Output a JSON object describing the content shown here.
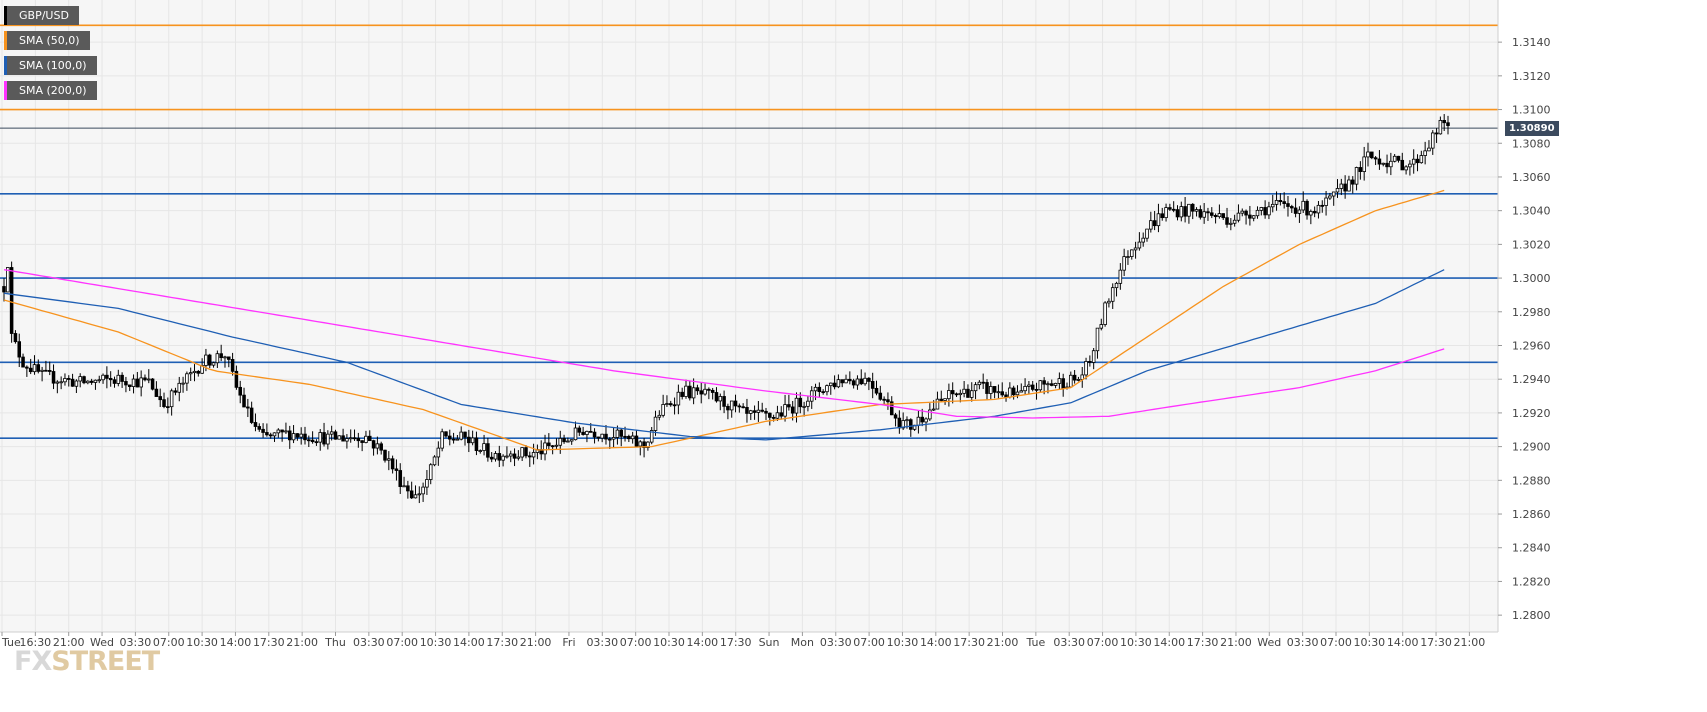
{
  "legend": [
    {
      "label": "GBP/USD",
      "color": "#000000"
    },
    {
      "label": "SMA (50,0)",
      "color": "#f7931e"
    },
    {
      "label": "SMA (100,0)",
      "color": "#1f5fb4"
    },
    {
      "label": "SMA (200,0)",
      "color": "#ff33ff"
    }
  ],
  "current_price": "1.30890",
  "logo": {
    "part1": "FX",
    "part2": "STREET"
  },
  "chart_data": {
    "type": "candlestick",
    "symbol": "GBP/USD",
    "ylim": [
      1.279,
      1.3165
    ],
    "y_ticks": [
      "1.3140",
      "1.3120",
      "1.3100",
      "1.3080",
      "1.3060",
      "1.3040",
      "1.3020",
      "1.3000",
      "1.2980",
      "1.2960",
      "1.2940",
      "1.2920",
      "1.2900",
      "1.2880",
      "1.2860",
      "1.2840",
      "1.2820",
      "1.2800"
    ],
    "x_ticks": [
      "Tue",
      "16:30",
      "21:00",
      "Wed",
      "03:30",
      "07:00",
      "10:30",
      "14:00",
      "17:30",
      "21:00",
      "Thu",
      "03:30",
      "07:00",
      "10:30",
      "14:00",
      "17:30",
      "21:00",
      "Fri",
      "03:30",
      "07:00",
      "10:30",
      "14:00",
      "17:30",
      "Sun",
      "Mon",
      "03:30",
      "07:00",
      "10:30",
      "14:00",
      "17:30",
      "21:00",
      "Tue",
      "03:30",
      "07:00",
      "10:30",
      "14:00",
      "17:30",
      "21:00",
      "Wed",
      "03:30",
      "07:00",
      "10:30",
      "14:00",
      "17:30",
      "21:00"
    ],
    "horizontal_levels": [
      {
        "value": 1.315,
        "color": "#f7931e"
      },
      {
        "value": 1.31,
        "color": "#f7931e"
      },
      {
        "value": 1.3089,
        "color": "#3b4a5e"
      },
      {
        "value": 1.305,
        "color": "#1f5fb4"
      },
      {
        "value": 1.3,
        "color": "#1f5fb4"
      },
      {
        "value": 1.295,
        "color": "#1f5fb4"
      },
      {
        "value": 1.2905,
        "color": "#1f5fb4"
      }
    ],
    "price_path": [
      [
        0,
        1.2995
      ],
      [
        1,
        1.301
      ],
      [
        2,
        1.2965
      ],
      [
        5,
        1.295
      ],
      [
        10,
        1.2942
      ],
      [
        20,
        1.2938
      ],
      [
        30,
        1.294
      ],
      [
        38,
        1.2938
      ],
      [
        42,
        1.2925
      ],
      [
        46,
        1.2935
      ],
      [
        52,
        1.295
      ],
      [
        58,
        1.2955
      ],
      [
        61,
        1.2935
      ],
      [
        65,
        1.2915
      ],
      [
        68,
        1.2905
      ],
      [
        75,
        1.2908
      ],
      [
        85,
        1.2905
      ],
      [
        95,
        1.2906
      ],
      [
        100,
        1.2895
      ],
      [
        104,
        1.288
      ],
      [
        108,
        1.287
      ],
      [
        111,
        1.288
      ],
      [
        115,
        1.2905
      ],
      [
        121,
        1.2905
      ],
      [
        128,
        1.2895
      ],
      [
        134,
        1.2897
      ],
      [
        138,
        1.2895
      ],
      [
        146,
        1.2902
      ],
      [
        152,
        1.291
      ],
      [
        160,
        1.2907
      ],
      [
        168,
        1.29
      ],
      [
        172,
        1.292
      ],
      [
        178,
        1.2933
      ],
      [
        185,
        1.293
      ],
      [
        190,
        1.2925
      ],
      [
        195,
        1.2918
      ],
      [
        202,
        1.2918
      ],
      [
        208,
        1.2925
      ],
      [
        215,
        1.2935
      ],
      [
        220,
        1.294
      ],
      [
        227,
        1.294
      ],
      [
        232,
        1.2925
      ],
      [
        235,
        1.2915
      ],
      [
        238,
        1.2912
      ],
      [
        242,
        1.292
      ],
      [
        248,
        1.293
      ],
      [
        256,
        1.2935
      ],
      [
        262,
        1.2932
      ],
      [
        266,
        1.293
      ],
      [
        270,
        1.2935
      ],
      [
        276,
        1.2938
      ],
      [
        282,
        1.294
      ],
      [
        285,
        1.295
      ],
      [
        288,
        1.2975
      ],
      [
        291,
        1.2995
      ],
      [
        295,
        1.3015
      ],
      [
        300,
        1.303
      ],
      [
        305,
        1.304
      ],
      [
        311,
        1.304
      ],
      [
        316,
        1.3038
      ],
      [
        322,
        1.3035
      ],
      [
        328,
        1.304
      ],
      [
        334,
        1.3043
      ],
      [
        340,
        1.3042
      ],
      [
        345,
        1.304
      ],
      [
        350,
        1.305
      ],
      [
        355,
        1.3062
      ],
      [
        358,
        1.3072
      ],
      [
        362,
        1.307
      ],
      [
        366,
        1.3068
      ],
      [
        370,
        1.3068
      ],
      [
        374,
        1.308
      ],
      [
        377,
        1.309
      ],
      [
        379,
        1.3092
      ]
    ],
    "sma": [
      {
        "name": "SMA (50,0)",
        "color": "#f7931e",
        "points": [
          [
            0,
            1.2987
          ],
          [
            30,
            1.2968
          ],
          [
            55,
            1.2945
          ],
          [
            80,
            1.2937
          ],
          [
            110,
            1.2922
          ],
          [
            140,
            1.2898
          ],
          [
            170,
            1.29
          ],
          [
            200,
            1.2915
          ],
          [
            230,
            1.2925
          ],
          [
            260,
            1.2928
          ],
          [
            280,
            1.2935
          ],
          [
            300,
            1.2965
          ],
          [
            320,
            1.2995
          ],
          [
            340,
            1.302
          ],
          [
            360,
            1.304
          ],
          [
            378,
            1.3052
          ]
        ]
      },
      {
        "name": "SMA (100,0)",
        "color": "#1f5fb4",
        "points": [
          [
            0,
            1.2991
          ],
          [
            30,
            1.2982
          ],
          [
            60,
            1.2965
          ],
          [
            90,
            1.295
          ],
          [
            120,
            1.2925
          ],
          [
            150,
            1.2914
          ],
          [
            180,
            1.2906
          ],
          [
            200,
            1.2904
          ],
          [
            230,
            1.291
          ],
          [
            260,
            1.2918
          ],
          [
            280,
            1.2926
          ],
          [
            300,
            1.2945
          ],
          [
            330,
            1.2965
          ],
          [
            360,
            1.2985
          ],
          [
            378,
            1.3005
          ]
        ]
      },
      {
        "name": "SMA (200,0)",
        "color": "#ff33ff",
        "points": [
          [
            0,
            1.3005
          ],
          [
            40,
            1.299
          ],
          [
            80,
            1.2975
          ],
          [
            120,
            1.296
          ],
          [
            160,
            1.2945
          ],
          [
            200,
            1.2933
          ],
          [
            230,
            1.2925
          ],
          [
            250,
            1.2918
          ],
          [
            270,
            1.2917
          ],
          [
            290,
            1.2918
          ],
          [
            310,
            1.2925
          ],
          [
            340,
            1.2935
          ],
          [
            360,
            1.2945
          ],
          [
            378,
            1.2958
          ]
        ]
      }
    ]
  }
}
